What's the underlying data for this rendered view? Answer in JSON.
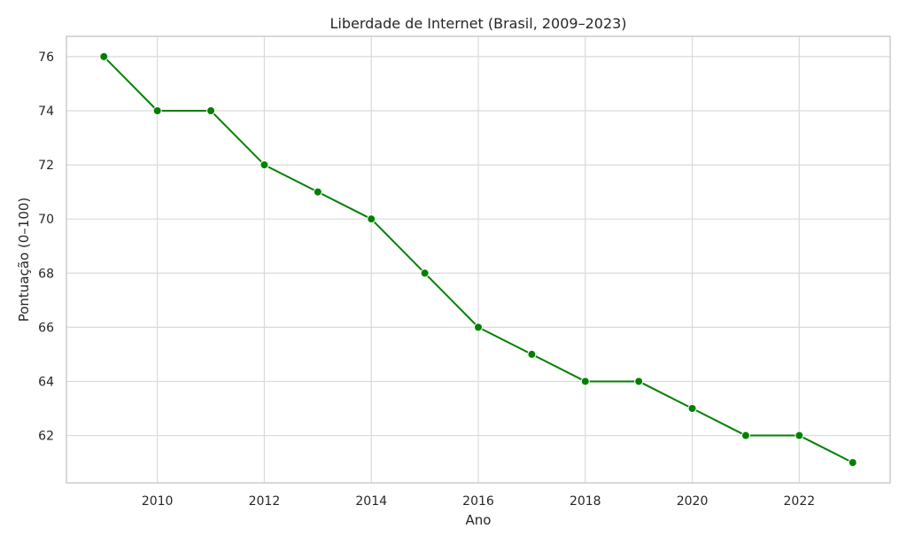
{
  "chart_data": {
    "type": "line",
    "title": "Liberdade de Internet (Brasil, 2009–2023)",
    "xlabel": "Ano",
    "ylabel": "Pontuação (0–100)",
    "x": [
      2009,
      2010,
      2011,
      2012,
      2013,
      2014,
      2015,
      2016,
      2017,
      2018,
      2019,
      2020,
      2021,
      2022,
      2023
    ],
    "series": [
      {
        "values": [
          76,
          74,
          74,
          72,
          71,
          70,
          68,
          66,
          65,
          64,
          64,
          63,
          62,
          62,
          61
        ],
        "color": "#008000",
        "marker": "circle"
      }
    ],
    "xticks": [
      "2010",
      "2012",
      "2014",
      "2016",
      "2018",
      "2020",
      "2022"
    ],
    "yticks": [
      "62",
      "64",
      "66",
      "68",
      "70",
      "72",
      "74",
      "76"
    ],
    "xlim": [
      2008.3,
      2023.7
    ],
    "ylim": [
      60.25,
      76.75
    ],
    "grid": true
  }
}
